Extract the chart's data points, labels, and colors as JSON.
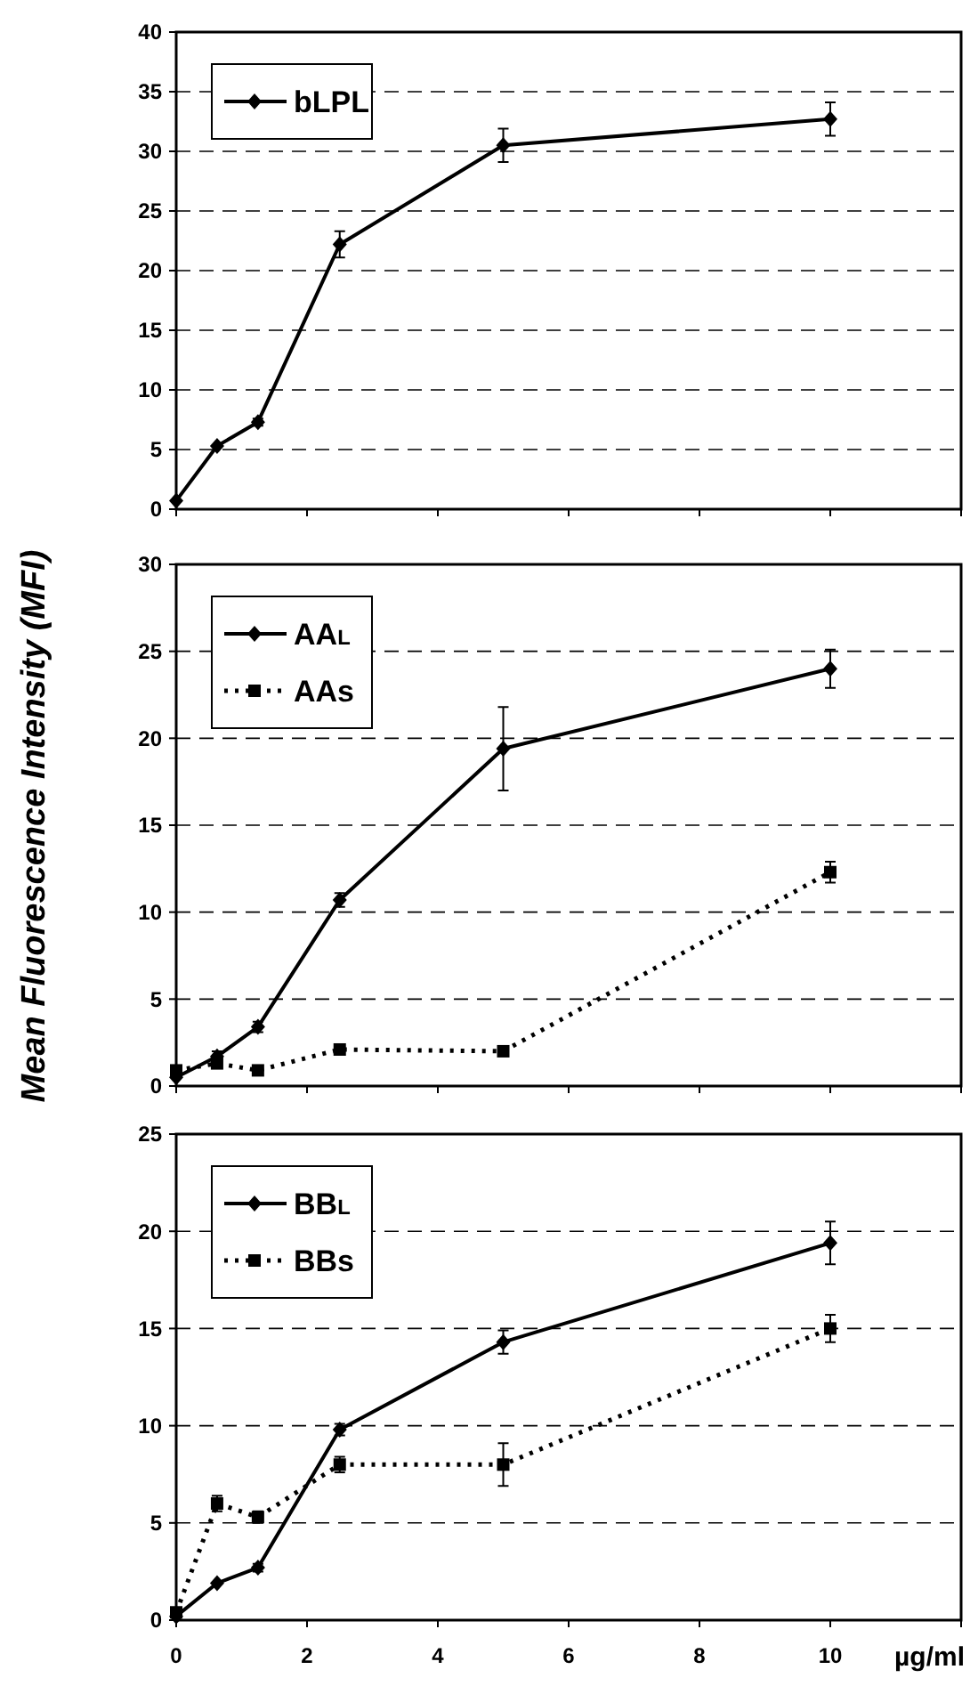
{
  "chart_data": [
    {
      "type": "line",
      "x": [
        0,
        0.625,
        1.25,
        2.5,
        5,
        10
      ],
      "xlim": [
        0,
        12
      ],
      "xticks": [
        0,
        2,
        4,
        6,
        8,
        10,
        12
      ],
      "ylim": [
        0,
        40
      ],
      "yticks": [
        0,
        5,
        10,
        15,
        20,
        25,
        30,
        35,
        40
      ],
      "grid": "y",
      "legend": "top left",
      "tick_labels": "y",
      "series": [
        {
          "name": "bLPL",
          "color": "#000000",
          "marker": "diamond",
          "line_style": "solid",
          "values": [
            0.7,
            5.3,
            7.3,
            22.2,
            30.5,
            32.7
          ],
          "errors": [
            null,
            null,
            0.3,
            1.1,
            1.4,
            1.4
          ]
        }
      ]
    },
    {
      "type": "line",
      "x": [
        0,
        0.625,
        1.25,
        2.5,
        5,
        10
      ],
      "xlim": [
        0,
        12
      ],
      "xticks": [
        0,
        2,
        4,
        6,
        8,
        10,
        12
      ],
      "ylim": [
        0,
        30
      ],
      "yticks": [
        0,
        5,
        10,
        15,
        20,
        25,
        30
      ],
      "grid": "y",
      "legend": "top left",
      "tick_labels": "y",
      "ylabel": "Mean Fluorescence Intensity (MFI)",
      "series": [
        {
          "name": "AA$_{L}$",
          "color": "#000000",
          "marker": "diamond",
          "line_style": "solid",
          "values": [
            0.5,
            1.7,
            3.4,
            10.7,
            19.4,
            24.0
          ],
          "errors": [
            null,
            0.3,
            0.3,
            0.4,
            2.4,
            1.1
          ]
        },
        {
          "name": "AAs",
          "color": "#000000",
          "marker": "square",
          "line_style": "dotted",
          "values": [
            0.9,
            1.3,
            0.9,
            2.1,
            2.0,
            12.3
          ],
          "errors": [
            null,
            null,
            null,
            null,
            null,
            0.6
          ]
        }
      ]
    },
    {
      "type": "line",
      "x": [
        0,
        0.625,
        1.25,
        2.5,
        5,
        10
      ],
      "xlim": [
        0,
        12
      ],
      "xticks": [
        0,
        2,
        4,
        6,
        8,
        10,
        {
          "value": 12,
          "label": null
        }
      ],
      "ylim": [
        0,
        25
      ],
      "yticks": [
        0,
        5,
        10,
        15,
        20,
        25
      ],
      "grid": "y",
      "legend": "top left",
      "xlabel": "µg/ml",
      "series": [
        {
          "name": "BB$_{L}$",
          "color": "#000000",
          "marker": "diamond",
          "line_style": "solid",
          "values": [
            0.2,
            1.9,
            2.7,
            9.8,
            14.3,
            19.4
          ],
          "errors": [
            null,
            null,
            0.2,
            0.3,
            0.6,
            1.1
          ]
        },
        {
          "name": "BBs",
          "color": "#000000",
          "marker": "square",
          "line_style": "dotted",
          "values": [
            0.4,
            6.0,
            5.3,
            8.0,
            8.0,
            15.0
          ],
          "errors": [
            null,
            0.4,
            0.3,
            0.4,
            1.1,
            0.7
          ]
        }
      ]
    }
  ]
}
